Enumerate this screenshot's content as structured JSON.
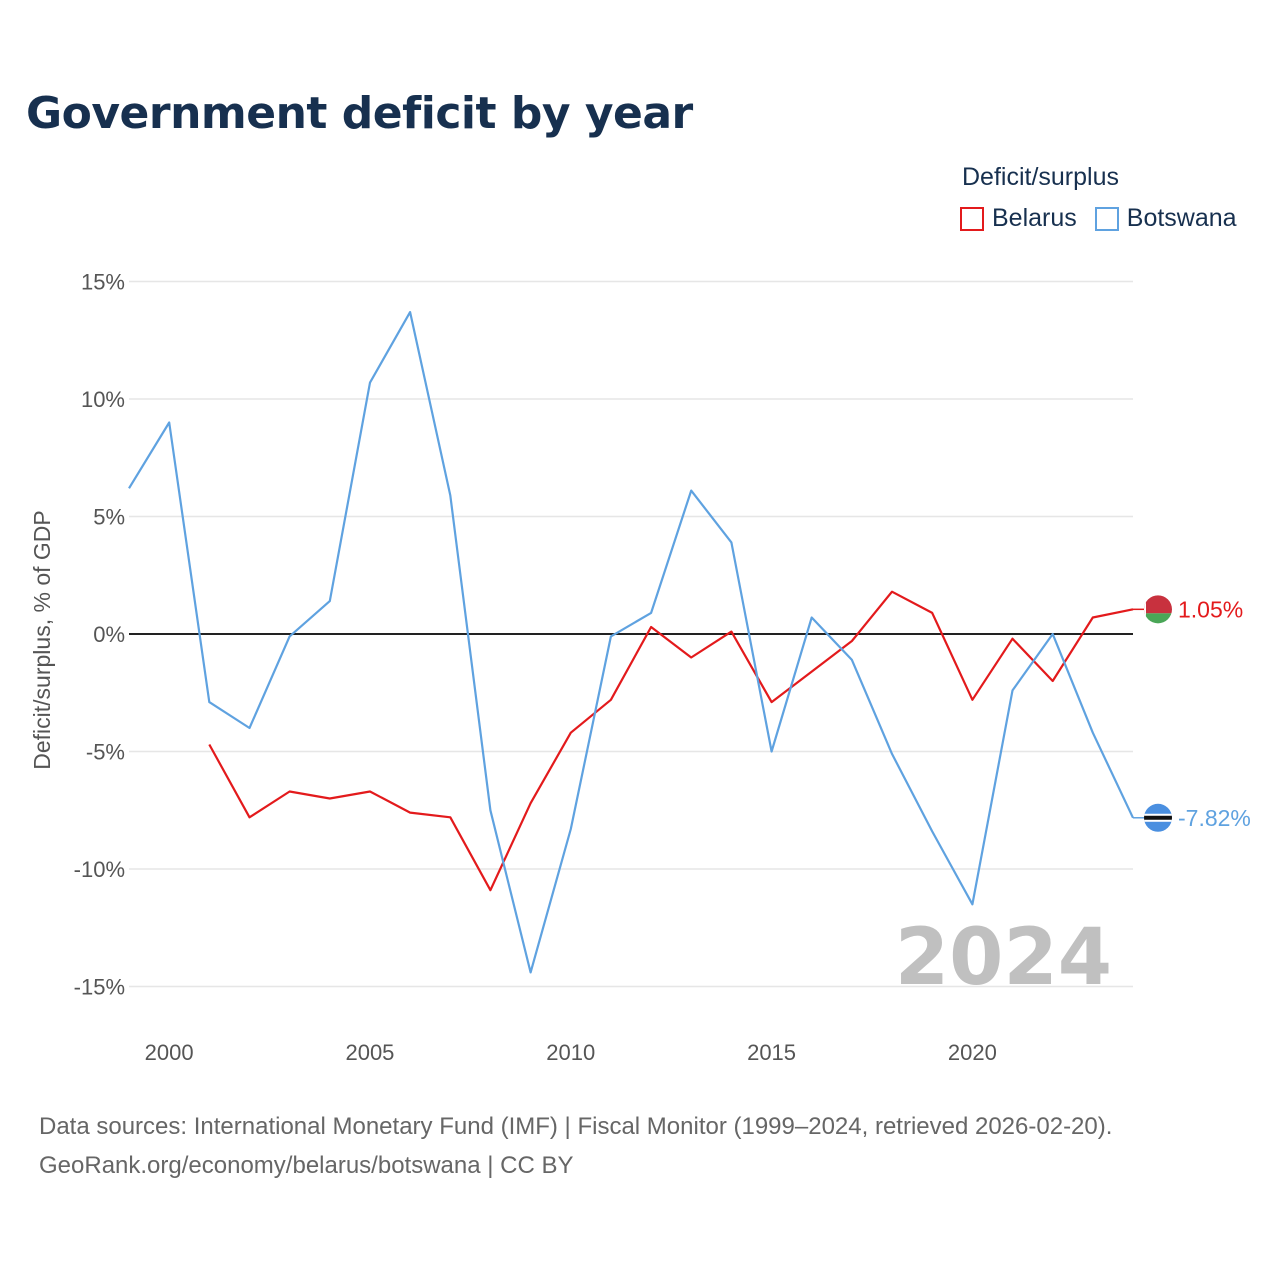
{
  "title": "Government deficit by year",
  "legend": {
    "title": "Deficit/surplus",
    "items": [
      {
        "label": "Belarus",
        "color": "#e31a1c"
      },
      {
        "label": "Botswana",
        "color": "#5fa2e0"
      }
    ]
  },
  "footer": {
    "line1": "Data sources: International Monetary Fund (IMF) | Fiscal Monitor (1999–2024, retrieved 2026-02-20).",
    "line2": "GeoRank.org/economy/belarus/botswana | CC BY"
  },
  "year_watermark": "2024",
  "end_labels": {
    "belarus": "1.05%",
    "botswana": "-7.82%"
  },
  "chart_data": {
    "type": "line",
    "title": "Government deficit by year",
    "ylabel": "Deficit/surplus, % of GDP",
    "xlabel": "",
    "xlim": [
      1999,
      2024
    ],
    "ylim": [
      -17,
      16
    ],
    "x_ticks": [
      "2000",
      "2005",
      "2010",
      "2015",
      "2020"
    ],
    "y_ticks": [
      "15%",
      "10%",
      "5%",
      "0%",
      "-5%",
      "-10%",
      "-15%"
    ],
    "series": [
      {
        "name": "Botswana",
        "color": "#5fa2e0",
        "x": [
          1999,
          2000,
          2001,
          2002,
          2003,
          2004,
          2005,
          2006,
          2007,
          2008,
          2009,
          2010,
          2011,
          2012,
          2013,
          2014,
          2015,
          2016,
          2017,
          2018,
          2019,
          2020,
          2021,
          2022,
          2023,
          2024
        ],
        "values": [
          6.2,
          9.0,
          -2.9,
          -4.0,
          -0.1,
          1.4,
          10.7,
          13.7,
          5.9,
          -7.5,
          -14.4,
          -8.3,
          -0.1,
          0.9,
          6.1,
          3.9,
          -5.0,
          0.7,
          -1.1,
          -5.1,
          -8.4,
          -11.5,
          -2.4,
          0.0,
          -4.2,
          -7.82
        ]
      },
      {
        "name": "Belarus",
        "color": "#e31a1c",
        "x": [
          2001,
          2002,
          2003,
          2004,
          2005,
          2006,
          2007,
          2008,
          2009,
          2010,
          2011,
          2012,
          2013,
          2014,
          2015,
          2016,
          2017,
          2018,
          2019,
          2020,
          2021,
          2022,
          2023,
          2024
        ],
        "values": [
          -4.7,
          -7.8,
          -6.7,
          -7.0,
          -6.7,
          -7.6,
          -7.8,
          -10.9,
          -7.2,
          -4.2,
          -2.8,
          0.3,
          -1.0,
          0.1,
          -2.9,
          -1.6,
          -0.3,
          1.8,
          0.9,
          -2.8,
          -0.2,
          -2.0,
          0.7,
          1.05
        ]
      }
    ]
  }
}
